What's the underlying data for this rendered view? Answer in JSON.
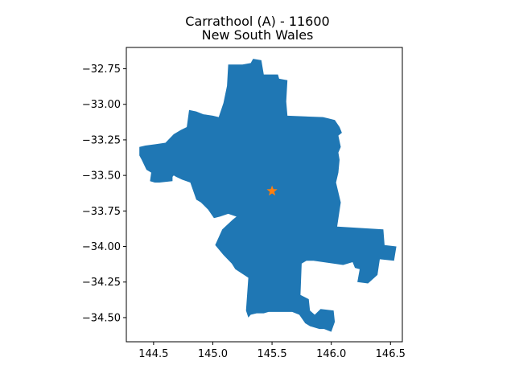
{
  "chart_data": {
    "type": "map",
    "title": [
      "Carrathool (A) - 11600",
      "New South Wales"
    ],
    "xlabel": "",
    "ylabel": "",
    "xlim": [
      144.27,
      146.6
    ],
    "ylim": [
      -34.67,
      -32.6
    ],
    "x_ticks": [
      {
        "value": 144.5,
        "label": "144.5"
      },
      {
        "value": 145.0,
        "label": "145.0"
      },
      {
        "value": 145.5,
        "label": "145.5"
      },
      {
        "value": 146.0,
        "label": "146.0"
      },
      {
        "value": 146.5,
        "label": "146.5"
      }
    ],
    "y_ticks": [
      {
        "value": -32.75,
        "label": "−32.75"
      },
      {
        "value": -33.0,
        "label": "−33.00"
      },
      {
        "value": -33.25,
        "label": "−33.25"
      },
      {
        "value": -33.5,
        "label": "−33.50"
      },
      {
        "value": -33.75,
        "label": "−33.75"
      },
      {
        "value": -34.0,
        "label": "−34.00"
      },
      {
        "value": -34.25,
        "label": "−34.25"
      },
      {
        "value": -34.5,
        "label": "−34.50"
      }
    ],
    "grid": false,
    "region_color": "#1f77b4",
    "marker": {
      "shape": "star",
      "color": "#ff7f0e",
      "lon": 145.5,
      "lat": -33.61
    },
    "boundary": [
      [
        145.34,
        -32.68
      ],
      [
        145.41,
        -32.69
      ],
      [
        145.43,
        -32.79
      ],
      [
        145.55,
        -32.79
      ],
      [
        145.56,
        -32.82
      ],
      [
        145.63,
        -32.83
      ],
      [
        145.62,
        -32.98
      ],
      [
        145.63,
        -33.08
      ],
      [
        145.93,
        -33.09
      ],
      [
        145.98,
        -33.1
      ],
      [
        146.03,
        -33.11
      ],
      [
        146.07,
        -33.16
      ],
      [
        146.09,
        -33.2
      ],
      [
        146.06,
        -33.22
      ],
      [
        146.08,
        -33.3
      ],
      [
        146.06,
        -33.34
      ],
      [
        146.07,
        -33.39
      ],
      [
        146.06,
        -33.48
      ],
      [
        146.04,
        -33.55
      ],
      [
        146.08,
        -33.69
      ],
      [
        146.05,
        -33.86
      ],
      [
        146.44,
        -33.88
      ],
      [
        146.45,
        -33.99
      ],
      [
        146.55,
        -34.0
      ],
      [
        146.53,
        -34.1
      ],
      [
        146.41,
        -34.09
      ],
      [
        146.39,
        -34.2
      ],
      [
        146.31,
        -34.26
      ],
      [
        146.22,
        -34.25
      ],
      [
        146.24,
        -34.16
      ],
      [
        146.2,
        -34.15
      ],
      [
        146.18,
        -34.11
      ],
      [
        146.1,
        -34.13
      ],
      [
        145.85,
        -34.1
      ],
      [
        145.79,
        -34.1
      ],
      [
        145.75,
        -34.12
      ],
      [
        145.74,
        -34.34
      ],
      [
        145.81,
        -34.37
      ],
      [
        145.82,
        -34.45
      ],
      [
        145.86,
        -34.48
      ],
      [
        145.91,
        -34.44
      ],
      [
        146.02,
        -34.45
      ],
      [
        146.03,
        -34.53
      ],
      [
        146.0,
        -34.6
      ],
      [
        145.94,
        -34.58
      ],
      [
        145.9,
        -34.58
      ],
      [
        145.82,
        -34.56
      ],
      [
        145.78,
        -34.54
      ],
      [
        145.73,
        -34.48
      ],
      [
        145.67,
        -34.46
      ],
      [
        145.62,
        -34.46
      ],
      [
        145.56,
        -34.46
      ],
      [
        145.47,
        -34.46
      ],
      [
        145.43,
        -34.47
      ],
      [
        145.37,
        -34.47
      ],
      [
        145.32,
        -34.48
      ],
      [
        145.3,
        -34.5
      ],
      [
        145.28,
        -34.45
      ],
      [
        145.3,
        -34.22
      ],
      [
        145.19,
        -34.16
      ],
      [
        145.16,
        -34.12
      ],
      [
        145.09,
        -34.06
      ],
      [
        145.02,
        -33.99
      ],
      [
        145.08,
        -33.88
      ],
      [
        145.17,
        -33.81
      ],
      [
        145.2,
        -33.79
      ],
      [
        145.13,
        -33.77
      ],
      [
        145.06,
        -33.79
      ],
      [
        145.01,
        -33.8
      ],
      [
        144.96,
        -33.74
      ],
      [
        144.9,
        -33.69
      ],
      [
        144.86,
        -33.67
      ],
      [
        144.81,
        -33.55
      ],
      [
        144.74,
        -33.53
      ],
      [
        144.69,
        -33.51
      ],
      [
        144.67,
        -33.5
      ],
      [
        144.66,
        -33.51
      ],
      [
        144.66,
        -33.54
      ],
      [
        144.55,
        -33.55
      ],
      [
        144.51,
        -33.55
      ],
      [
        144.47,
        -33.54
      ],
      [
        144.48,
        -33.48
      ],
      [
        144.44,
        -33.46
      ],
      [
        144.4,
        -33.39
      ],
      [
        144.38,
        -33.36
      ],
      [
        144.38,
        -33.3
      ],
      [
        144.43,
        -33.29
      ],
      [
        144.52,
        -33.28
      ],
      [
        144.6,
        -33.27
      ],
      [
        144.67,
        -33.21
      ],
      [
        144.73,
        -33.18
      ],
      [
        144.78,
        -33.16
      ],
      [
        144.8,
        -33.04
      ],
      [
        144.86,
        -33.05
      ],
      [
        144.92,
        -33.07
      ],
      [
        145.0,
        -33.08
      ],
      [
        145.05,
        -33.09
      ],
      [
        145.09,
        -32.99
      ],
      [
        145.12,
        -32.87
      ],
      [
        145.13,
        -32.72
      ],
      [
        145.25,
        -32.72
      ],
      [
        145.32,
        -32.71
      ]
    ]
  }
}
